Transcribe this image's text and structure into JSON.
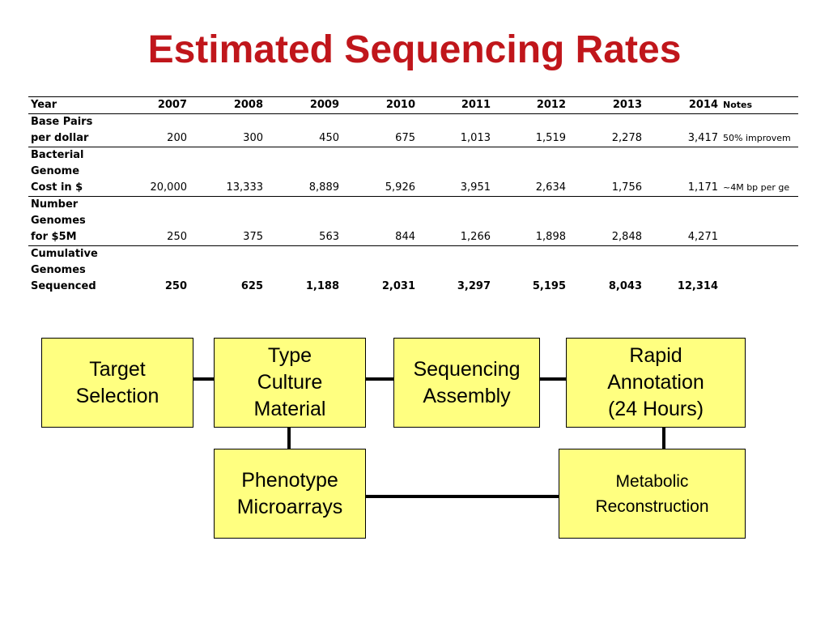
{
  "title": "Estimated Sequencing Rates",
  "table": {
    "header": {
      "label": "Year",
      "years": [
        "2007",
        "2008",
        "2009",
        "2010",
        "2011",
        "2012",
        "2013",
        "2014"
      ],
      "notes_label": "Notes"
    },
    "rows": [
      {
        "label_lines": [
          "Base Pairs",
          "per dollar"
        ],
        "values": [
          "200",
          "300",
          "450",
          "675",
          "1,013",
          "1,519",
          "2,278",
          "3,417"
        ],
        "note": "50% improvem"
      },
      {
        "label_lines": [
          "Bacterial",
          "Genome",
          "Cost in $"
        ],
        "values": [
          "20,000",
          "13,333",
          "8,889",
          "5,926",
          "3,951",
          "2,634",
          "1,756",
          "1,171"
        ],
        "note": "~4M bp per ge"
      },
      {
        "label_lines": [
          "Number",
          "Genomes",
          "for $5M"
        ],
        "values": [
          "250",
          "375",
          "563",
          "844",
          "1,266",
          "1,898",
          "2,848",
          "4,271"
        ],
        "note": ""
      },
      {
        "label_lines": [
          "Cumulative",
          "Genomes",
          "Sequenced"
        ],
        "values": [
          "250",
          "625",
          "1,188",
          "2,031",
          "3,297",
          "5,195",
          "8,043",
          "12,314"
        ],
        "note": "",
        "bold": true
      }
    ]
  },
  "diagram": {
    "boxes": {
      "target_selection": "Target\nSelection",
      "type_culture_material": "Type\nCulture\nMaterial",
      "sequencing_assembly": "Sequencing\nAssembly",
      "rapid_annotation": "Rapid\nAnnotation\n(24 Hours)",
      "phenotype_microarrays": "Phenotype\nMicroarrays",
      "metabolic_reconstruction": "Metabolic\nReconstruction"
    }
  },
  "colors": {
    "title": "#c0161b",
    "box_fill": "#ffff80",
    "connector": "#000000"
  }
}
